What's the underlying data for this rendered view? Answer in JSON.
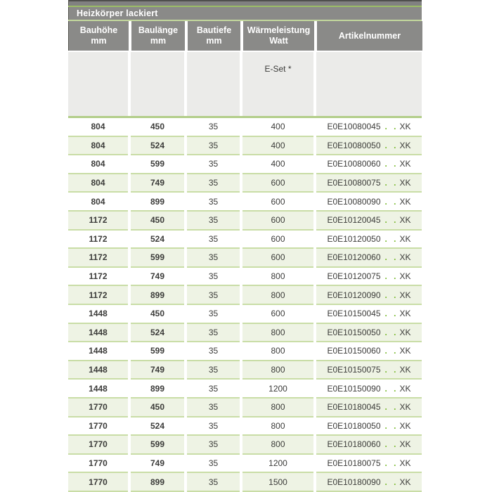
{
  "table": {
    "title": "Heizkörper lackiert",
    "columns": [
      {
        "line1": "Bauhöhe",
        "line2": "mm"
      },
      {
        "line1": "Baulänge",
        "line2": "mm"
      },
      {
        "line1": "Bautiefe",
        "line2": "mm"
      },
      {
        "line1": "Wärmeleistung",
        "line2": "Watt"
      },
      {
        "line1": "Artikelnummer",
        "line2": ""
      }
    ],
    "subheader": {
      "e_set_label": "E-Set *"
    },
    "artikel_dots": ". .",
    "artikel_suffix": "XK",
    "rows": [
      {
        "bauhoehe": "804",
        "baulaenge": "450",
        "bautiefe": "35",
        "watt": "400",
        "artikel": "E0E10080045"
      },
      {
        "bauhoehe": "804",
        "baulaenge": "524",
        "bautiefe": "35",
        "watt": "400",
        "artikel": "E0E10080050"
      },
      {
        "bauhoehe": "804",
        "baulaenge": "599",
        "bautiefe": "35",
        "watt": "400",
        "artikel": "E0E10080060"
      },
      {
        "bauhoehe": "804",
        "baulaenge": "749",
        "bautiefe": "35",
        "watt": "600",
        "artikel": "E0E10080075"
      },
      {
        "bauhoehe": "804",
        "baulaenge": "899",
        "bautiefe": "35",
        "watt": "600",
        "artikel": "E0E10080090"
      },
      {
        "bauhoehe": "1172",
        "baulaenge": "450",
        "bautiefe": "35",
        "watt": "600",
        "artikel": "E0E10120045"
      },
      {
        "bauhoehe": "1172",
        "baulaenge": "524",
        "bautiefe": "35",
        "watt": "600",
        "artikel": "E0E10120050"
      },
      {
        "bauhoehe": "1172",
        "baulaenge": "599",
        "bautiefe": "35",
        "watt": "600",
        "artikel": "E0E10120060"
      },
      {
        "bauhoehe": "1172",
        "baulaenge": "749",
        "bautiefe": "35",
        "watt": "800",
        "artikel": "E0E10120075"
      },
      {
        "bauhoehe": "1172",
        "baulaenge": "899",
        "bautiefe": "35",
        "watt": "800",
        "artikel": "E0E10120090"
      },
      {
        "bauhoehe": "1448",
        "baulaenge": "450",
        "bautiefe": "35",
        "watt": "600",
        "artikel": "E0E10150045"
      },
      {
        "bauhoehe": "1448",
        "baulaenge": "524",
        "bautiefe": "35",
        "watt": "800",
        "artikel": "E0E10150050"
      },
      {
        "bauhoehe": "1448",
        "baulaenge": "599",
        "bautiefe": "35",
        "watt": "800",
        "artikel": "E0E10150060"
      },
      {
        "bauhoehe": "1448",
        "baulaenge": "749",
        "bautiefe": "35",
        "watt": "800",
        "artikel": "E0E10150075"
      },
      {
        "bauhoehe": "1448",
        "baulaenge": "899",
        "bautiefe": "35",
        "watt": "1200",
        "artikel": "E0E10150090"
      },
      {
        "bauhoehe": "1770",
        "baulaenge": "450",
        "bautiefe": "35",
        "watt": "800",
        "artikel": "E0E10180045"
      },
      {
        "bauhoehe": "1770",
        "baulaenge": "524",
        "bautiefe": "35",
        "watt": "800",
        "artikel": "E0E10180050"
      },
      {
        "bauhoehe": "1770",
        "baulaenge": "599",
        "bautiefe": "35",
        "watt": "800",
        "artikel": "E0E10180060"
      },
      {
        "bauhoehe": "1770",
        "baulaenge": "749",
        "bautiefe": "35",
        "watt": "1200",
        "artikel": "E0E10180075"
      },
      {
        "bauhoehe": "1770",
        "baulaenge": "899",
        "bautiefe": "35",
        "watt": "1500",
        "artikel": "E0E10180090"
      }
    ],
    "colors": {
      "header_gray": "#8a8a88",
      "subheader_gray": "#ebebe9",
      "row_alt_green": "#eef3e4",
      "line_green": "#b2cd89",
      "dot_green": "#76b82a",
      "text_dark": "#3b3b39"
    }
  }
}
